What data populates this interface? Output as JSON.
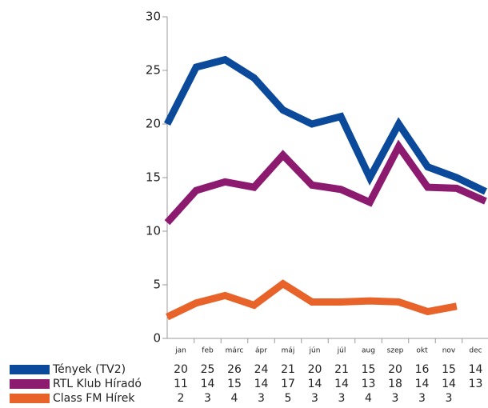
{
  "chart_data": {
    "type": "line",
    "categories": [
      "jan",
      "feb",
      "márc",
      "ápr",
      "máj",
      "jún",
      "júl",
      "aug",
      "szep",
      "okt",
      "nov",
      "dec"
    ],
    "series": [
      {
        "name": "Tények (TV2)",
        "color": "#0b4a9b",
        "values": [
          20,
          25.3,
          26,
          24.3,
          21.3,
          20,
          20.7,
          15,
          20,
          16,
          15,
          13.7
        ],
        "value_labels": [
          "20",
          "25",
          "26",
          "24",
          "21",
          "20",
          "21",
          "15",
          "20",
          "16",
          "15",
          "14"
        ]
      },
      {
        "name": "RTL Klub Híradó",
        "color": "#8c1a6e",
        "values": [
          10.8,
          13.8,
          14.6,
          14.1,
          17.1,
          14.3,
          13.9,
          12.7,
          17.9,
          14.1,
          14,
          12.8
        ],
        "value_labels": [
          "11",
          "14",
          "15",
          "14",
          "17",
          "14",
          "14",
          "13",
          "18",
          "14",
          "14",
          "13"
        ]
      },
      {
        "name": "Class FM Hírek",
        "color": "#e8632a",
        "values": [
          2,
          3.3,
          4,
          3.1,
          5.1,
          3.4,
          3.4,
          3.5,
          3.4,
          2.5,
          3,
          null
        ],
        "value_labels": [
          "2",
          "3",
          "4",
          "3",
          "5",
          "3",
          "3",
          "4",
          "3",
          "3",
          "3",
          null
        ]
      }
    ],
    "ylim": [
      0,
      30
    ],
    "yticks": [
      0,
      5,
      10,
      15,
      20,
      25,
      30
    ]
  }
}
